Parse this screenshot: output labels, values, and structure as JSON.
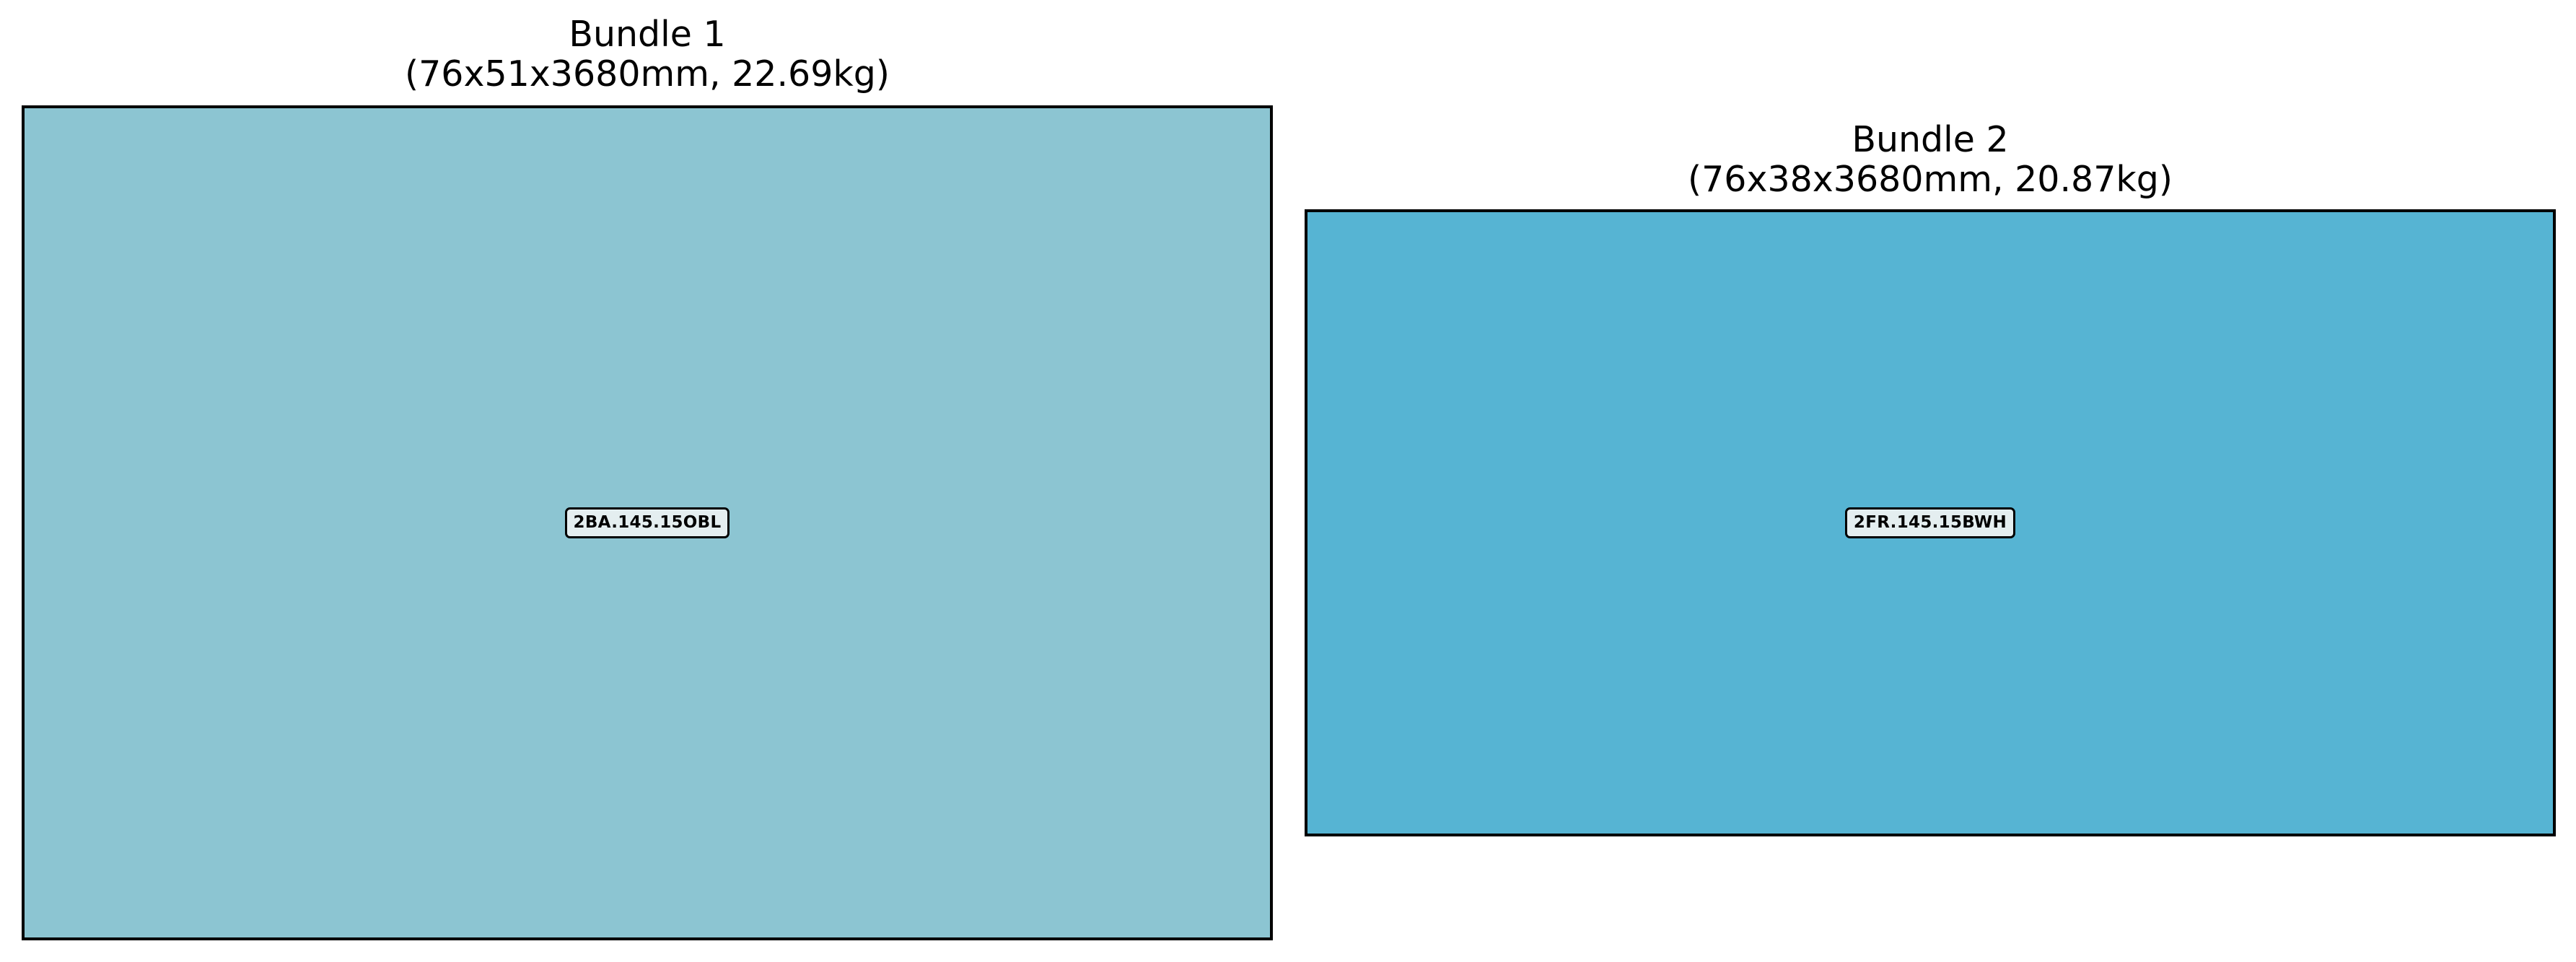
{
  "bundles": [
    {
      "title": "Bundle 1",
      "subtitle": "(76x51x3680mm, 22.69kg)",
      "item_label": "2BA.145.15OBL",
      "fill_color": "#8cc5d2"
    },
    {
      "title": "Bundle 2",
      "subtitle": "(76x38x3680mm, 20.87kg)",
      "item_label": "2FR.145.15BWH",
      "fill_color": "#56b4d3"
    }
  ],
  "colors": {
    "background": "#ffffff",
    "border": "#000000",
    "label_background": "#e4eef0"
  }
}
